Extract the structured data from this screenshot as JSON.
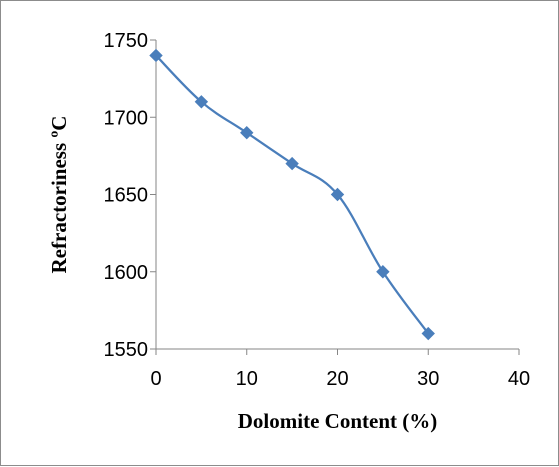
{
  "chart_data": {
    "type": "line",
    "title": "",
    "xlabel": "Dolomite Content (%)",
    "ylabel": "Refractoriness ºC",
    "xlim": [
      0,
      40
    ],
    "ylim": [
      1550,
      1750
    ],
    "xticks": [
      0,
      10,
      20,
      30,
      40
    ],
    "yticks": [
      1550,
      1600,
      1650,
      1700,
      1750
    ],
    "grid": false,
    "legend": "none",
    "series": [
      {
        "x": [
          0,
          5,
          10,
          15,
          20,
          25,
          30
        ],
        "y": [
          1740,
          1710,
          1690,
          1670,
          1650,
          1600,
          1560
        ],
        "color": "#4a7ebb",
        "marker": "diamond"
      }
    ]
  }
}
